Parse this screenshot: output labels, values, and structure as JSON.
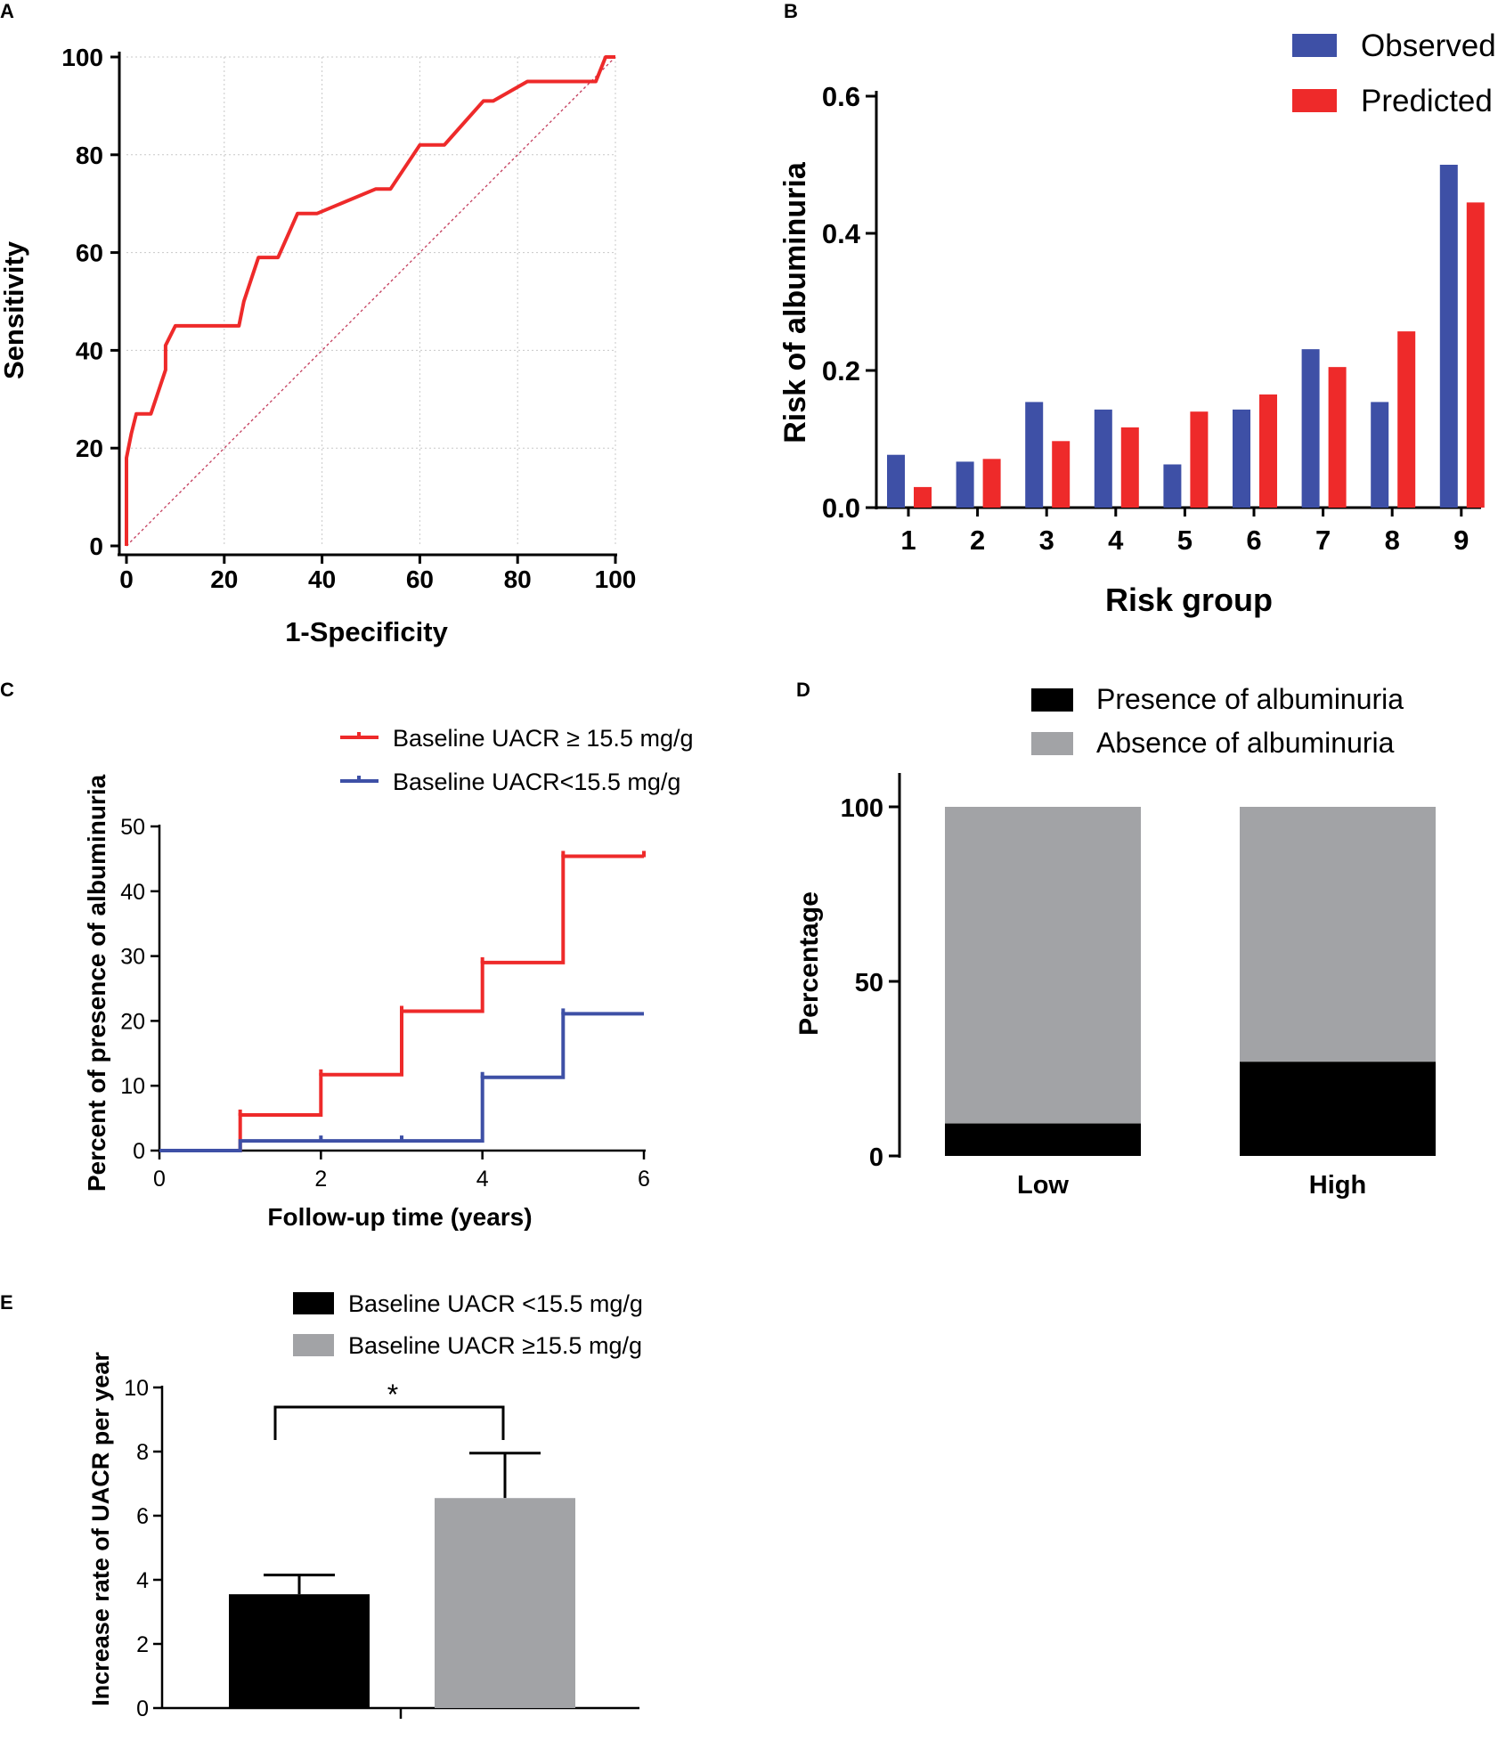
{
  "figure": {
    "colors": {
      "red": "#ee2a2a",
      "blue": "#3e50a6",
      "black": "#000000",
      "gray": "#a2a3a6",
      "grid": "#c8c8c8",
      "diag": "#c33a5a"
    }
  },
  "chart_data": [
    {
      "id": "A",
      "panel_label": "A",
      "type": "line",
      "title": "",
      "xlabel": "1-Specificity",
      "ylabel": "Sensitivity",
      "xlim": [
        0,
        100
      ],
      "ylim": [
        0,
        100
      ],
      "xticks": [
        "0",
        "20",
        "40",
        "60",
        "80",
        "100"
      ],
      "yticks": [
        "0",
        "20",
        "40",
        "60",
        "80",
        "100"
      ],
      "grid": true,
      "series": [
        {
          "name": "ROC curve",
          "color": "#ee2a2a",
          "points": [
            [
              0,
              0
            ],
            [
              0,
              18
            ],
            [
              1,
              23
            ],
            [
              2,
              27
            ],
            [
              5,
              27
            ],
            [
              8,
              36
            ],
            [
              8,
              41
            ],
            [
              10,
              45
            ],
            [
              23,
              45
            ],
            [
              24,
              50
            ],
            [
              27,
              59
            ],
            [
              31,
              59
            ],
            [
              35,
              68
            ],
            [
              39,
              68
            ],
            [
              51,
              73
            ],
            [
              54,
              73
            ],
            [
              60,
              82
            ],
            [
              65,
              82
            ],
            [
              73,
              91
            ],
            [
              75,
              91
            ],
            [
              82,
              95
            ],
            [
              96,
              95
            ],
            [
              98,
              100
            ],
            [
              100,
              100
            ]
          ]
        },
        {
          "name": "Reference line",
          "color": "#c33a5a",
          "dashed": true,
          "points": [
            [
              0,
              0
            ],
            [
              100,
              100
            ]
          ]
        }
      ]
    },
    {
      "id": "B",
      "panel_label": "B",
      "type": "bar",
      "title": "",
      "xlabel": "Risk group",
      "ylabel": "Risk of albuminuria",
      "ylim": [
        0,
        0.6
      ],
      "yticks": [
        "0.0",
        "0.2",
        "0.4",
        "0.6"
      ],
      "categories": [
        "1",
        "2",
        "3",
        "4",
        "5",
        "6",
        "7",
        "8",
        "9"
      ],
      "legend_position": "top-right",
      "series": [
        {
          "name": "Observed",
          "color": "#3e50a6",
          "values": [
            0.077,
            0.067,
            0.154,
            0.143,
            0.063,
            0.143,
            0.231,
            0.154,
            0.5
          ]
        },
        {
          "name": "Predicted",
          "color": "#ee2a2a",
          "values": [
            0.03,
            0.071,
            0.097,
            0.117,
            0.14,
            0.165,
            0.205,
            0.257,
            0.445
          ]
        }
      ]
    },
    {
      "id": "C",
      "panel_label": "C",
      "type": "line",
      "title": "",
      "xlabel": "Follow-up time (years)",
      "ylabel": "Percent of presence of albuminuria",
      "xlim": [
        0,
        6
      ],
      "ylim": [
        0,
        50
      ],
      "xticks": [
        "0",
        "2",
        "4",
        "6"
      ],
      "yticks": [
        "0",
        "10",
        "20",
        "30",
        "40",
        "50"
      ],
      "legend_position": "top",
      "series": [
        {
          "name": "Baseline UACR ≥ 15.5 mg/g",
          "color": "#ee2a2a",
          "points": [
            [
              0,
              0
            ],
            [
              1,
              0
            ],
            [
              1,
              5.5
            ],
            [
              2,
              5.5
            ],
            [
              2,
              11.7
            ],
            [
              3,
              11.7
            ],
            [
              3,
              21.5
            ],
            [
              4,
              21.5
            ],
            [
              4,
              29
            ],
            [
              5,
              29
            ],
            [
              5,
              45.4
            ],
            [
              6,
              45.4
            ]
          ],
          "censor_marks": [
            [
              1,
              5.5
            ],
            [
              2,
              11.7
            ],
            [
              3,
              21.5
            ],
            [
              4,
              29
            ],
            [
              5,
              45.4
            ],
            [
              6,
              45.4
            ]
          ]
        },
        {
          "name": "Baseline UACR<15.5 mg/g",
          "color": "#3e50a6",
          "points": [
            [
              0,
              0
            ],
            [
              1,
              0
            ],
            [
              1,
              1.5
            ],
            [
              4,
              1.5
            ],
            [
              4,
              11.3
            ],
            [
              5,
              11.3
            ],
            [
              5,
              21.1
            ],
            [
              6,
              21.1
            ]
          ],
          "censor_marks": [
            [
              2,
              1.5
            ],
            [
              3,
              1.5
            ],
            [
              4,
              11.3
            ],
            [
              5,
              21.1
            ]
          ]
        }
      ]
    },
    {
      "id": "D",
      "panel_label": "D",
      "type": "bar",
      "stacked": true,
      "title": "",
      "xlabel": "",
      "ylabel": "Percentage",
      "ylim": [
        0,
        100
      ],
      "yticks": [
        "0",
        "50",
        "100"
      ],
      "categories": [
        "Low",
        "High"
      ],
      "legend_position": "top",
      "series": [
        {
          "name": "Presence of albuminuria",
          "color": "#000000",
          "values": [
            9.3,
            27
          ]
        },
        {
          "name": "Absence of albuminuria",
          "color": "#a2a3a6",
          "values": [
            90.7,
            73
          ]
        }
      ]
    },
    {
      "id": "E",
      "panel_label": "E",
      "type": "bar",
      "title": "",
      "xlabel": "",
      "ylabel": "Increase rate of UACR per year",
      "ylim": [
        0,
        10
      ],
      "yticks": [
        "0",
        "2",
        "4",
        "6",
        "8",
        "10"
      ],
      "legend_position": "top",
      "annotation": "*",
      "series": [
        {
          "name": "Baseline UACR <15.5 mg/g",
          "color": "#000000",
          "value": 3.55,
          "error": 0.6
        },
        {
          "name": "Baseline UACR ≥15.5 mg/g",
          "color": "#a2a3a6",
          "value": 6.55,
          "error": 1.4
        }
      ]
    }
  ]
}
